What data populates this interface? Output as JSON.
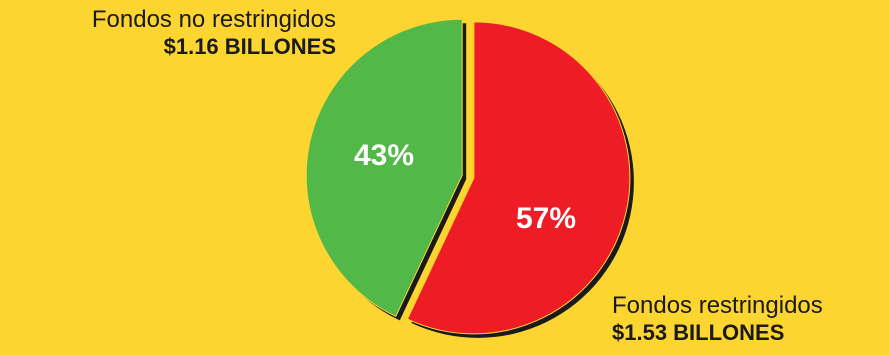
{
  "chart_data": {
    "type": "pie",
    "slices": [
      {
        "label": "Fondos restringidos",
        "value": 57,
        "value_label": "57%",
        "amount_label": "$1.53 BILLONES",
        "color": "#EE1C25"
      },
      {
        "label": "Fondos no restringidos",
        "value": 43,
        "value_label": "43%",
        "amount_label": "$1.16 BILLONES",
        "color": "#52B848"
      }
    ],
    "start_angle": "12 o'clock, clockwise",
    "exploded": true,
    "shadow_color": "#1a1a1a"
  },
  "background_color": "#FDD531"
}
